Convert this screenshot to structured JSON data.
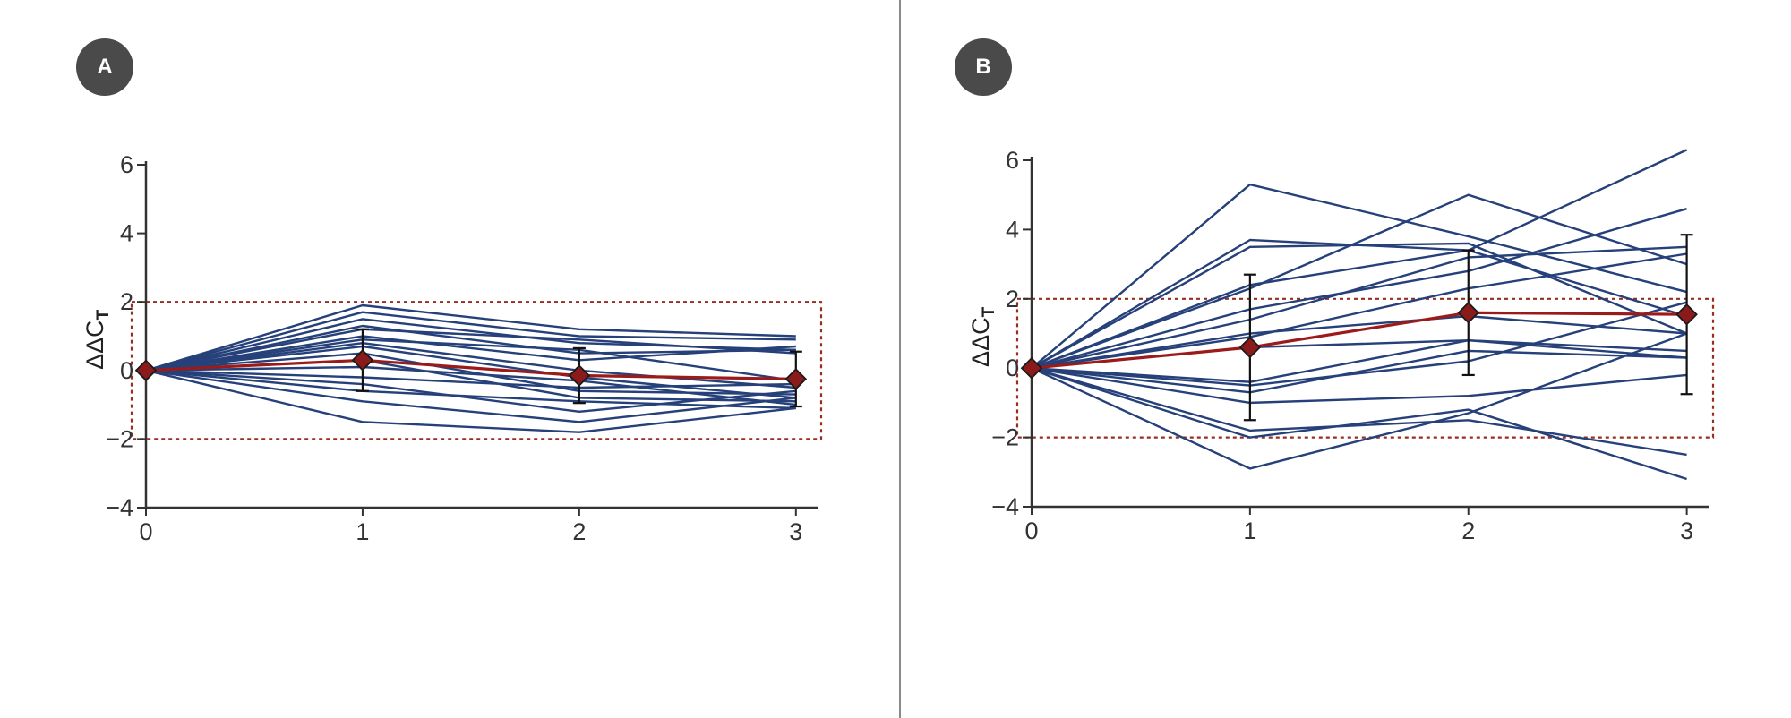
{
  "panels": [
    {
      "badge": "A"
    },
    {
      "badge": "B"
    }
  ],
  "chart_data": [
    {
      "type": "line",
      "panel": "A",
      "xlabel": "",
      "ylabel_main": "ΔΔC",
      "ylabel_sub": "T",
      "x": [
        0,
        1,
        2,
        3
      ],
      "xticks": [
        "0",
        "1",
        "2",
        "3"
      ],
      "yticks": [
        "6",
        "4",
        "2",
        "0",
        "−2",
        "−4"
      ],
      "ytick_values": [
        6,
        4,
        2,
        0,
        -2,
        -4
      ],
      "ylim": [
        -4,
        6
      ],
      "xlim": [
        0,
        3.1
      ],
      "threshold_box": {
        "ymin": -2,
        "ymax": 2
      },
      "colors": {
        "series": "#26407a",
        "mean": "#9b1b1b",
        "marker": "#8b1a1a",
        "box": "#9b2d20",
        "axis": "#333333"
      },
      "series": [
        {
          "values": [
            0,
            1.9,
            1.2,
            1.0
          ]
        },
        {
          "values": [
            0,
            1.7,
            1.0,
            0.9
          ]
        },
        {
          "values": [
            0,
            1.5,
            0.8,
            0.6
          ]
        },
        {
          "values": [
            0,
            1.3,
            0.5,
            0.6
          ]
        },
        {
          "values": [
            0,
            1.2,
            0.9,
            0.5
          ]
        },
        {
          "values": [
            0,
            1.0,
            0.3,
            0.7
          ]
        },
        {
          "values": [
            0,
            0.9,
            0.6,
            -0.3
          ]
        },
        {
          "values": [
            0,
            0.8,
            0.0,
            -0.5
          ]
        },
        {
          "values": [
            0,
            0.7,
            -0.2,
            -0.8
          ]
        },
        {
          "values": [
            0,
            0.5,
            -0.6,
            -0.7
          ]
        },
        {
          "values": [
            0,
            0.3,
            -0.8,
            -0.9
          ]
        },
        {
          "values": [
            0,
            0.1,
            -0.3,
            -1.0
          ]
        },
        {
          "values": [
            0,
            -0.2,
            -0.5,
            -0.4
          ]
        },
        {
          "values": [
            0,
            -0.4,
            -1.2,
            -0.6
          ]
        },
        {
          "values": [
            0,
            -0.6,
            -0.9,
            -1.1
          ]
        },
        {
          "values": [
            0,
            -0.9,
            -1.5,
            -0.8
          ]
        },
        {
          "values": [
            0,
            -1.5,
            -1.8,
            -1.1
          ]
        }
      ],
      "mean": {
        "values": [
          0,
          0.3,
          -0.15,
          -0.25
        ],
        "errors": [
          0,
          0.9,
          0.8,
          0.8
        ]
      }
    },
    {
      "type": "line",
      "panel": "B",
      "xlabel": "",
      "ylabel_main": "ΔΔC",
      "ylabel_sub": "T",
      "x": [
        0,
        1,
        2,
        3
      ],
      "xticks": [
        "0",
        "1",
        "2",
        "3"
      ],
      "yticks": [
        "6",
        "4",
        "2",
        "0",
        "−2",
        "−4"
      ],
      "ytick_values": [
        6,
        4,
        2,
        0,
        -2,
        -4
      ],
      "ylim": [
        -4,
        6
      ],
      "xlim": [
        0,
        3.1
      ],
      "threshold_box": {
        "ymin": -2,
        "ymax": 2
      },
      "colors": {
        "series": "#26407a",
        "mean": "#9b1b1b",
        "marker": "#8b1a1a",
        "box": "#9b2d20",
        "axis": "#333333"
      },
      "series": [
        {
          "values": [
            0,
            5.3,
            3.8,
            2.2
          ]
        },
        {
          "values": [
            0,
            3.7,
            3.4,
            1.5
          ]
        },
        {
          "values": [
            0,
            3.5,
            3.6,
            1.0
          ]
        },
        {
          "values": [
            0,
            2.3,
            5.0,
            3.0
          ]
        },
        {
          "values": [
            0,
            2.4,
            3.4,
            6.3
          ]
        },
        {
          "values": [
            0,
            1.7,
            2.8,
            4.6
          ]
        },
        {
          "values": [
            0,
            1.4,
            3.2,
            3.5
          ]
        },
        {
          "values": [
            0,
            0.9,
            2.3,
            3.3
          ]
        },
        {
          "values": [
            0,
            1.0,
            1.5,
            1.0
          ]
        },
        {
          "values": [
            0,
            0.6,
            0.8,
            0.5
          ]
        },
        {
          "values": [
            0,
            -0.4,
            0.8,
            0.3
          ]
        },
        {
          "values": [
            0,
            -0.5,
            0.2,
            1.9
          ]
        },
        {
          "values": [
            0,
            -0.7,
            0.5,
            0.3
          ]
        },
        {
          "values": [
            0,
            -1.0,
            -0.8,
            -0.2
          ]
        },
        {
          "values": [
            0,
            -1.8,
            -1.5,
            -2.5
          ]
        },
        {
          "values": [
            0,
            -2.0,
            -1.2,
            -3.2
          ]
        },
        {
          "values": [
            0,
            -2.9,
            -1.3,
            1.0
          ]
        }
      ],
      "mean": {
        "values": [
          0,
          0.6,
          1.6,
          1.55
        ],
        "errors": [
          0,
          2.1,
          1.8,
          2.3
        ]
      }
    }
  ]
}
